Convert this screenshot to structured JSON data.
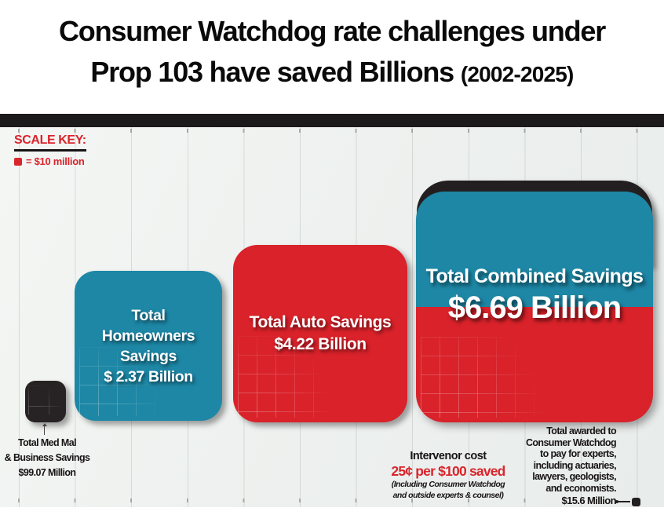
{
  "title": {
    "line1": "Consumer Watchdog rate challenges under",
    "line2": "Prop 103 have saved Billions",
    "period": "(2002-2025)"
  },
  "scale_key": {
    "label": "SCALE KEY:",
    "unit": "= $10 million"
  },
  "colors": {
    "teal": "#1d87a5",
    "red": "#d9222a",
    "ink_black": "#231f20",
    "chart_background": "#edf0ee",
    "key_red": "#d9252c"
  },
  "squares": {
    "med_mal": {
      "label_lines": [
        "Total Med Mal",
        "& Business Savings",
        "$99.07 Million"
      ]
    },
    "homeowners": {
      "lines": [
        "Total",
        "Homeowners",
        "Savings",
        "$ 2.37 Billion"
      ]
    },
    "auto": {
      "lines": [
        "Total Auto Savings",
        "$4.22 Billion"
      ]
    },
    "combined": {
      "line1": "Total Combined Savings",
      "line2": "$6.69 Billion"
    }
  },
  "footnotes": {
    "intervenor": {
      "title": "Intervenor cost",
      "highlight": "25¢ per $100 saved",
      "note_line1": "(Including Consumer Watchdog",
      "note_line2": "and outside experts & counsel)"
    },
    "awarded": {
      "lines": [
        "Total awarded to",
        "Consumer Watchdog",
        "to pay for experts,",
        "including actuaries,",
        "lawyers, geologists,",
        "and economists."
      ],
      "amount": "$15.6 Million"
    }
  },
  "chart_data": {
    "type": "proportional-area",
    "title": "Consumer Watchdog rate challenges under Prop 103 have saved Billions (2002-2025)",
    "scale": "1 small square = $10 million",
    "categories": [
      "Total Med Mal & Business Savings",
      "Total Homeowners Savings",
      "Total Auto Savings",
      "Total Combined Savings"
    ],
    "values_usd_millions": [
      99.07,
      2370,
      4220,
      6690
    ],
    "value_labels": [
      "$99.07 Million",
      "$ 2.37 Billion",
      "$4.22 Billion",
      "$6.69 Billion"
    ],
    "colors": [
      "#231f20",
      "#1d87a5",
      "#d9222a",
      "#1d87a5 + #d9222a + #231f20"
    ],
    "annotations": {
      "intervenor_cost": "Intervenor cost 25¢ per $100 saved (Including Consumer Watchdog and outside experts & counsel)",
      "awarded": "Total awarded to Consumer Watchdog to pay for experts, including actuaries, lawyers, geologists, and economists. $15.6 Million"
    },
    "legend_position": "top-left",
    "grid": true
  }
}
